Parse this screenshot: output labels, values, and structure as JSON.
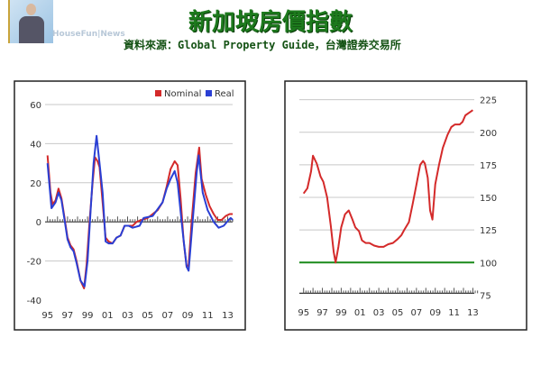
{
  "header": {
    "title": "新加坡房價指數",
    "source": "資料來源：Global Property Guide，台灣證券交易所",
    "watermark": "HouseFun|News"
  },
  "chart_data": [
    {
      "type": "line",
      "legend_position": "top-right",
      "grid": true,
      "ylim": [
        -40,
        60
      ],
      "yticks": [
        "60",
        "40",
        "20",
        "0",
        "-20",
        "-40"
      ],
      "xticks": [
        "95",
        "97",
        "99",
        "01",
        "03",
        "05",
        "07",
        "09",
        "11",
        "13"
      ],
      "series": [
        {
          "name": "Nominal",
          "color": "#d42a2a",
          "points": [
            [
              1995,
              34
            ],
            [
              1995.3,
              15
            ],
            [
              1995.5,
              9
            ],
            [
              1995.8,
              11
            ],
            [
              1996.1,
              17
            ],
            [
              1996.4,
              12
            ],
            [
              1996.7,
              2
            ],
            [
              1997,
              -8
            ],
            [
              1997.3,
              -12
            ],
            [
              1997.6,
              -14
            ],
            [
              1997.9,
              -20
            ],
            [
              1998.3,
              -30
            ],
            [
              1998.65,
              -34
            ],
            [
              1998.9,
              -22
            ],
            [
              1999.2,
              0
            ],
            [
              1999.5,
              20
            ],
            [
              1999.75,
              33
            ],
            [
              2000,
              31
            ],
            [
              2000.2,
              28
            ],
            [
              2000.5,
              10
            ],
            [
              2000.8,
              -8
            ],
            [
              2001.1,
              -10
            ],
            [
              2001.5,
              -11
            ],
            [
              2001.9,
              -8
            ],
            [
              2002.3,
              -7
            ],
            [
              2002.7,
              -2
            ],
            [
              2003.1,
              -2
            ],
            [
              2003.5,
              -2
            ],
            [
              2003.9,
              0
            ],
            [
              2004.4,
              1
            ],
            [
              2005,
              2
            ],
            [
              2005.5,
              4
            ],
            [
              2006,
              6
            ],
            [
              2006.5,
              10
            ],
            [
              2006.9,
              18
            ],
            [
              2007.3,
              27
            ],
            [
              2007.7,
              31
            ],
            [
              2008,
              29
            ],
            [
              2008.3,
              12
            ],
            [
              2008.6,
              -10
            ],
            [
              2008.9,
              -23
            ],
            [
              2009.1,
              -22
            ],
            [
              2009.4,
              0
            ],
            [
              2009.8,
              25
            ],
            [
              2010.15,
              38
            ],
            [
              2010.4,
              22
            ],
            [
              2010.8,
              14
            ],
            [
              2011.2,
              8
            ],
            [
              2011.6,
              4
            ],
            [
              2012,
              1
            ],
            [
              2012.4,
              1
            ],
            [
              2012.8,
              3
            ],
            [
              2013.2,
              4
            ],
            [
              2013.5,
              4
            ]
          ]
        },
        {
          "name": "Real",
          "color": "#2a3fd4",
          "points": [
            [
              1995,
              30
            ],
            [
              1995.4,
              7
            ],
            [
              1995.8,
              10
            ],
            [
              1996.1,
              15
            ],
            [
              1996.4,
              11
            ],
            [
              1996.7,
              1
            ],
            [
              1997,
              -9
            ],
            [
              1997.3,
              -13
            ],
            [
              1997.6,
              -15
            ],
            [
              1997.9,
              -21
            ],
            [
              1998.3,
              -30
            ],
            [
              1998.7,
              -33
            ],
            [
              1999,
              -20
            ],
            [
              1999.3,
              5
            ],
            [
              1999.6,
              30
            ],
            [
              1999.9,
              44
            ],
            [
              2000.2,
              30
            ],
            [
              2000.5,
              15
            ],
            [
              2000.8,
              -10
            ],
            [
              2001.1,
              -11
            ],
            [
              2001.5,
              -11
            ],
            [
              2001.9,
              -8
            ],
            [
              2002.3,
              -7
            ],
            [
              2002.7,
              -2
            ],
            [
              2003.1,
              -2
            ],
            [
              2003.5,
              -3
            ],
            [
              2004.2,
              -2
            ],
            [
              2004.6,
              2
            ],
            [
              2005.5,
              3
            ],
            [
              2006.5,
              10
            ],
            [
              2006.9,
              17
            ],
            [
              2007.3,
              22
            ],
            [
              2007.7,
              26
            ],
            [
              2008,
              20
            ],
            [
              2008.5,
              -5
            ],
            [
              2008.9,
              -23
            ],
            [
              2009.1,
              -25
            ],
            [
              2009.5,
              0
            ],
            [
              2009.9,
              25
            ],
            [
              2010.1,
              34
            ],
            [
              2010.5,
              15
            ],
            [
              2011,
              6
            ],
            [
              2011.6,
              0
            ],
            [
              2012.1,
              -3
            ],
            [
              2012.6,
              -2
            ],
            [
              2013.1,
              1
            ],
            [
              2013.3,
              2
            ],
            [
              2013.5,
              1
            ]
          ]
        }
      ]
    },
    {
      "type": "line",
      "grid": true,
      "ylim": [
        75,
        225
      ],
      "yticks": [
        "225",
        "200",
        "175",
        "150",
        "125",
        "100",
        "75"
      ],
      "xticks": [
        "95",
        "97",
        "99",
        "01",
        "03",
        "05",
        "07",
        "09",
        "11",
        "13"
      ],
      "baseline": {
        "value": 100,
        "color": "#1a8a1a"
      },
      "series": [
        {
          "color": "#d42a2a",
          "points": [
            [
              1995,
              153
            ],
            [
              1995.4,
              157
            ],
            [
              1995.8,
              170
            ],
            [
              1996,
              182
            ],
            [
              1996.4,
              176
            ],
            [
              1996.8,
              166
            ],
            [
              1997.1,
              162
            ],
            [
              1997.5,
              150
            ],
            [
              1997.9,
              128
            ],
            [
              1998.2,
              108
            ],
            [
              1998.4,
              100
            ],
            [
              1998.7,
              112
            ],
            [
              1999,
              127
            ],
            [
              1999.4,
              137
            ],
            [
              1999.8,
              140
            ],
            [
              2000.2,
              133
            ],
            [
              2000.5,
              127
            ],
            [
              2000.9,
              124
            ],
            [
              2001.2,
              117
            ],
            [
              2001.6,
              115
            ],
            [
              2002,
              115
            ],
            [
              2002.5,
              113
            ],
            [
              2003,
              112
            ],
            [
              2003.5,
              112
            ],
            [
              2004,
              114
            ],
            [
              2004.5,
              115
            ],
            [
              2005,
              118
            ],
            [
              2005.4,
              121
            ],
            [
              2005.7,
              125
            ],
            [
              2006.2,
              131
            ],
            [
              2006.6,
              145
            ],
            [
              2007,
              160
            ],
            [
              2007.4,
              175
            ],
            [
              2007.7,
              178
            ],
            [
              2007.9,
              176
            ],
            [
              2008.2,
              165
            ],
            [
              2008.45,
              140
            ],
            [
              2008.7,
              133
            ],
            [
              2009,
              160
            ],
            [
              2009.4,
              175
            ],
            [
              2009.8,
              188
            ],
            [
              2010.3,
              198
            ],
            [
              2010.7,
              204
            ],
            [
              2011.1,
              206
            ],
            [
              2011.6,
              206
            ],
            [
              2011.9,
              208
            ],
            [
              2012.2,
              213
            ],
            [
              2012.6,
              215
            ],
            [
              2013,
              217
            ]
          ]
        }
      ]
    }
  ]
}
